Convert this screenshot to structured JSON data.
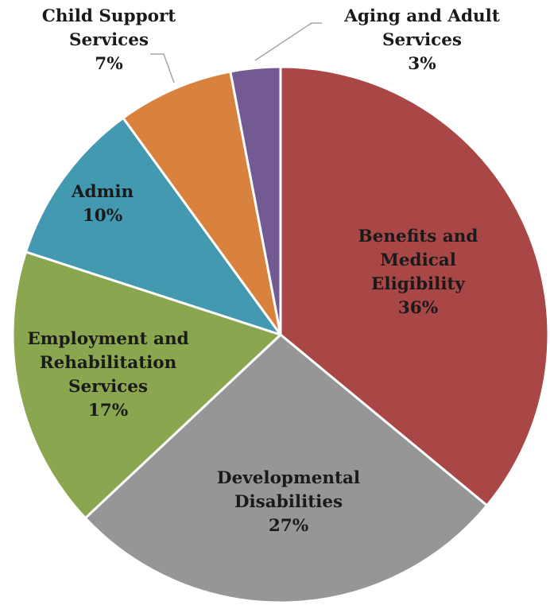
{
  "chart_data": {
    "type": "pie",
    "title": "",
    "slices": [
      {
        "name": "Benefits and Medical Eligibility",
        "label_lines": [
          "Benefits and",
          "Medical",
          "Eligibility"
        ],
        "value": 36,
        "percent_label": "36%",
        "color": "#a84746"
      },
      {
        "name": "Developmental Disabilities",
        "label_lines": [
          "Developmental",
          "Disabilities"
        ],
        "value": 27,
        "percent_label": "27%",
        "color": "#969696"
      },
      {
        "name": "Employment and Rehabilitation Services",
        "label_lines": [
          "Employment and",
          "Rehabilitation",
          "Services"
        ],
        "value": 17,
        "percent_label": "17%",
        "color": "#8aa64f"
      },
      {
        "name": "Admin",
        "label_lines": [
          "Admin"
        ],
        "value": 10,
        "percent_label": "10%",
        "color": "#4299b0"
      },
      {
        "name": "Child Support Services",
        "label_lines": [
          "Child Support",
          "Services"
        ],
        "value": 7,
        "percent_label": "7%",
        "color": "#d9823e"
      },
      {
        "name": "Aging and Adult Services",
        "label_lines": [
          "Aging and Adult",
          "Services"
        ],
        "value": 3,
        "percent_label": "3%",
        "color": "#735a92"
      }
    ],
    "start_angle_deg": 0,
    "direction": "clockwise",
    "legend": "none",
    "data_labels": "name and percent"
  }
}
